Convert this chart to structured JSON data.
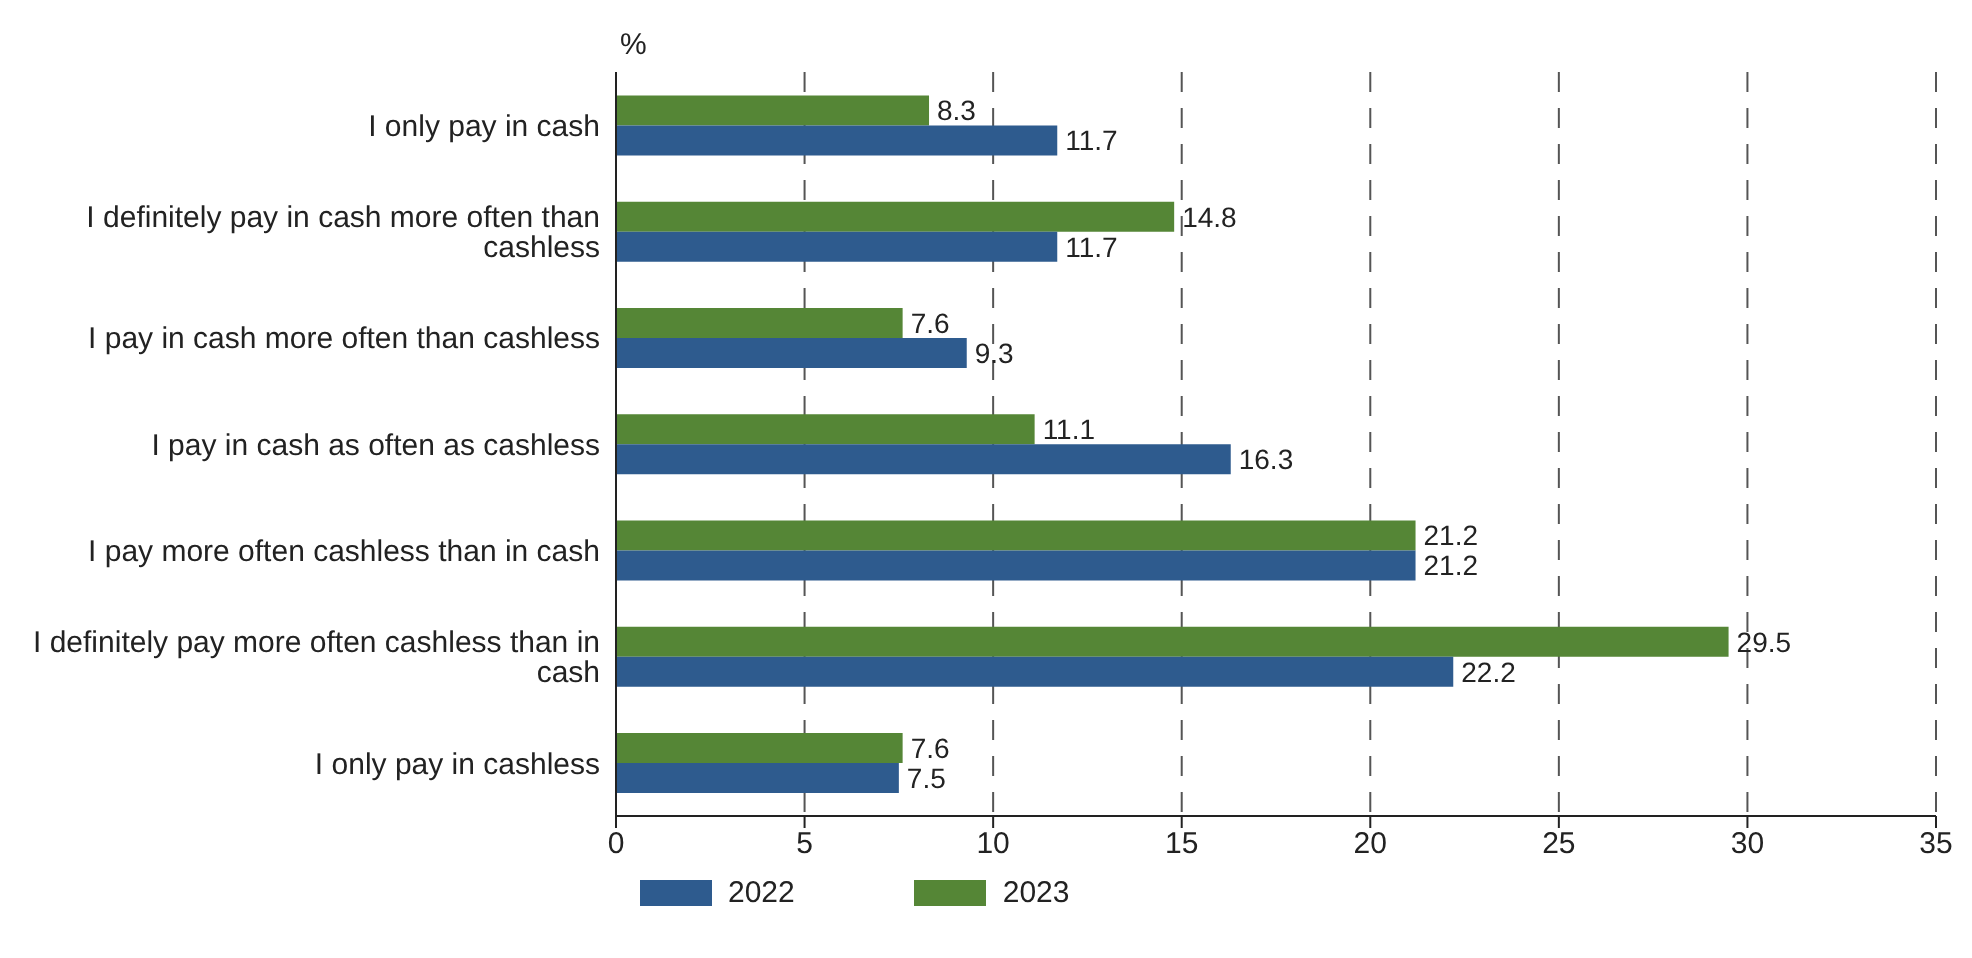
{
  "chart_data": {
    "type": "bar",
    "orientation": "horizontal",
    "xlabel": "%",
    "categories": [
      "I only pay in cash",
      "I definitely pay in cash more often than cashless",
      "I pay in cash more often than cashless",
      "I pay in cash as often as cashless",
      "I pay more often cashless than in cash",
      "I definitely pay more often cashless than in cash",
      "I only pay in cashless"
    ],
    "series": [
      {
        "name": "2022",
        "color": "#2e5b8e",
        "values": [
          11.7,
          11.7,
          9.3,
          16.3,
          21.2,
          22.2,
          7.5
        ]
      },
      {
        "name": "2023",
        "color": "#558636",
        "values": [
          8.3,
          14.8,
          7.6,
          11.1,
          21.2,
          29.5,
          7.6
        ]
      }
    ],
    "xlim": [
      0,
      35
    ],
    "xticks": [
      0,
      5,
      10,
      15,
      20,
      25,
      30,
      35
    ],
    "grid": "x",
    "legend": "bottom",
    "data_labels": true
  }
}
